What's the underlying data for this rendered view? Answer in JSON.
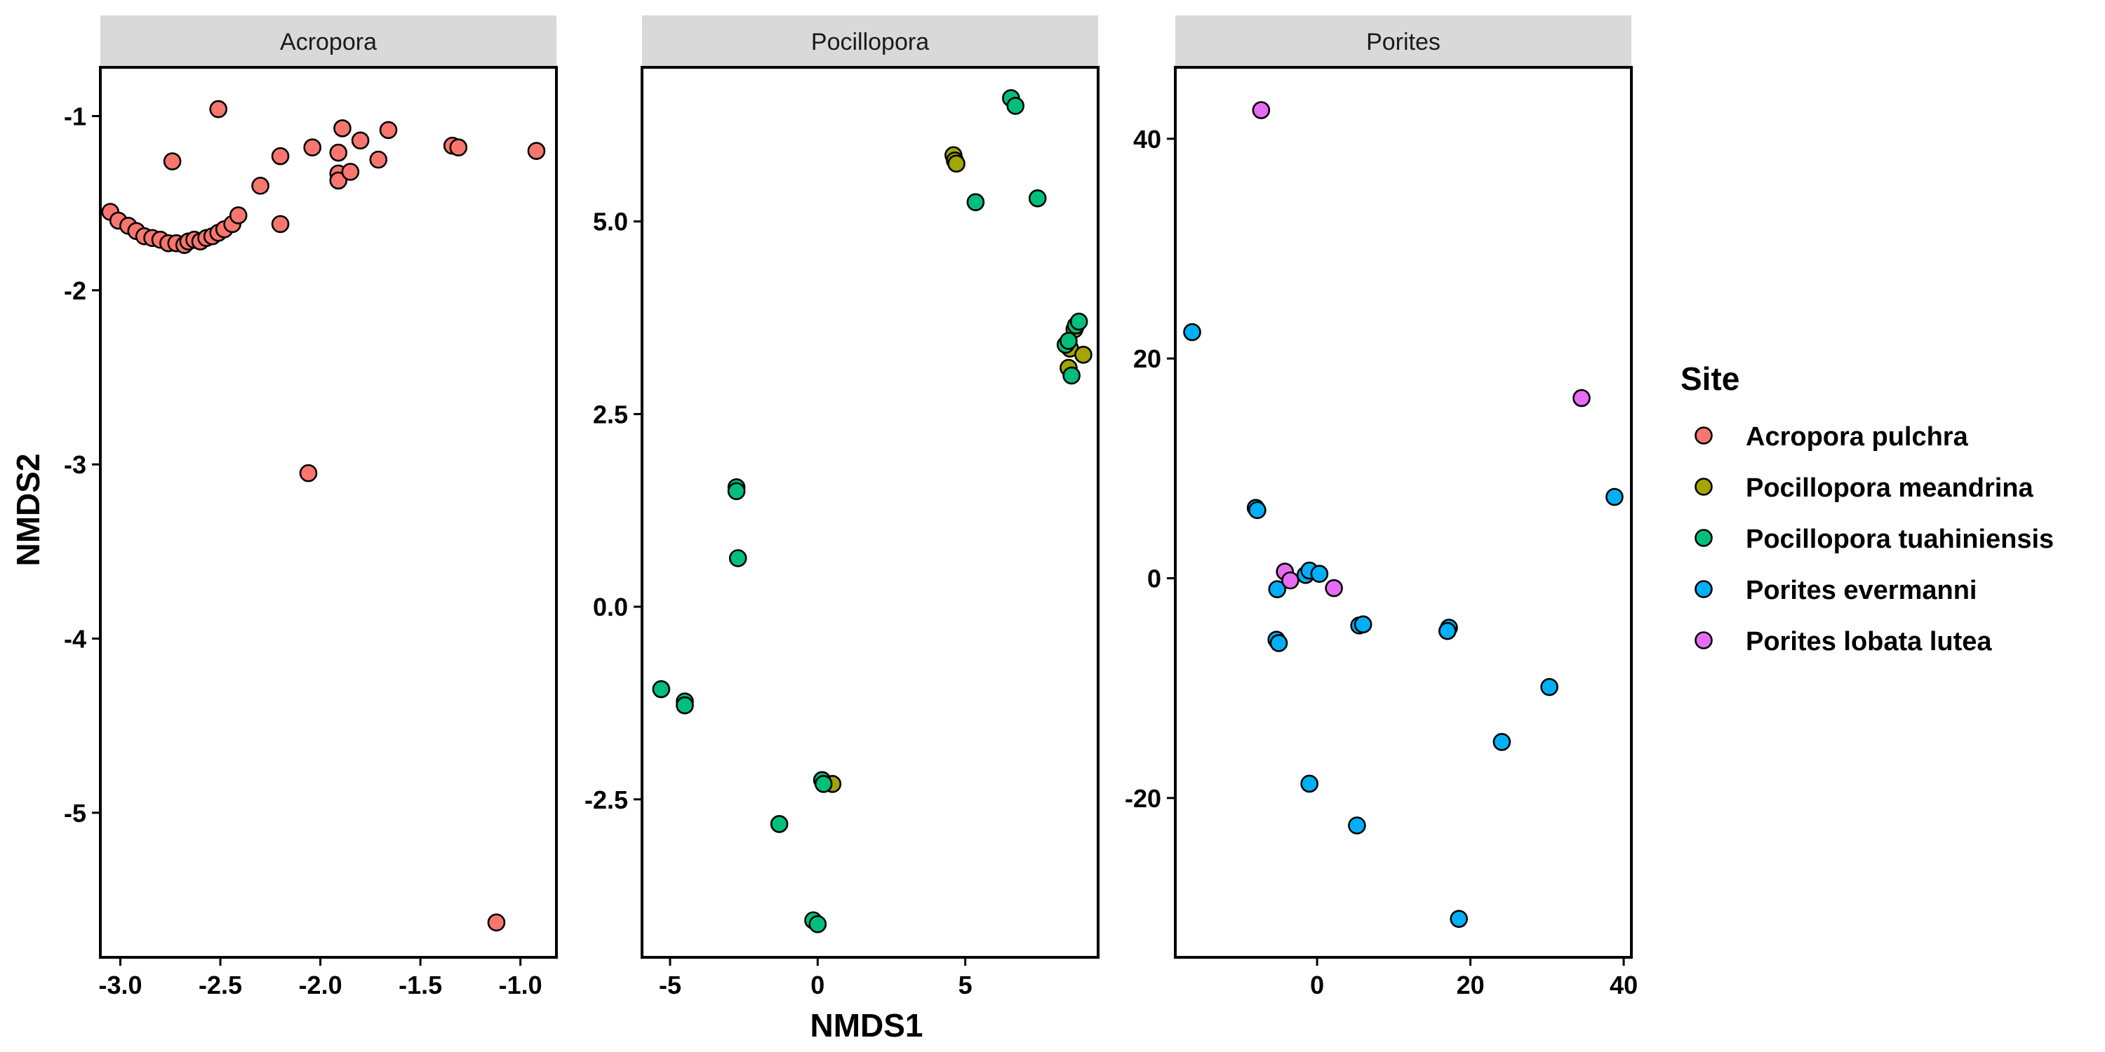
{
  "chart_data": {
    "type": "scatter",
    "xlabel": "NMDS1",
    "ylabel": "NMDS2",
    "legend": {
      "title": "Site",
      "placement": "right",
      "entries": [
        {
          "name": "Acropora pulchra",
          "color": "#F8766D"
        },
        {
          "name": "Pocillopora meandrina",
          "color": "#A3A500"
        },
        {
          "name": "Pocillopora tuahiniensis",
          "color": "#00BF7D"
        },
        {
          "name": "Porites evermanni",
          "color": "#00B0F6"
        },
        {
          "name": "Porites lobata lutea",
          "color": "#E76BF3"
        }
      ]
    },
    "grid": false,
    "panels": [
      {
        "title": "Acropora",
        "xlim": [
          -3.1,
          -0.82
        ],
        "ylim": [
          -5.83,
          -0.72
        ],
        "xticks": [
          -3.0,
          -2.5,
          -2.0,
          -1.5,
          -1.0
        ],
        "xtick_labels": [
          "-3.0",
          "-2.5",
          "-2.0",
          "-1.5",
          "-1.0"
        ],
        "yticks": [
          -5,
          -4,
          -3,
          -2,
          -1
        ],
        "ytick_labels": [
          "-5",
          "-4",
          "-3",
          "-2",
          "-1"
        ],
        "points": [
          {
            "x": -3.05,
            "y": -1.55,
            "s": 0
          },
          {
            "x": -3.01,
            "y": -1.6,
            "s": 0
          },
          {
            "x": -2.96,
            "y": -1.63,
            "s": 0
          },
          {
            "x": -2.92,
            "y": -1.66,
            "s": 0
          },
          {
            "x": -2.88,
            "y": -1.69,
            "s": 0
          },
          {
            "x": -2.84,
            "y": -1.7,
            "s": 0
          },
          {
            "x": -2.8,
            "y": -1.71,
            "s": 0
          },
          {
            "x": -2.76,
            "y": -1.73,
            "s": 0
          },
          {
            "x": -2.72,
            "y": -1.73,
            "s": 0
          },
          {
            "x": -2.68,
            "y": -1.74,
            "s": 0
          },
          {
            "x": -2.66,
            "y": -1.72,
            "s": 0
          },
          {
            "x": -2.63,
            "y": -1.71,
            "s": 0
          },
          {
            "x": -2.6,
            "y": -1.72,
            "s": 0
          },
          {
            "x": -2.57,
            "y": -1.7,
            "s": 0
          },
          {
            "x": -2.54,
            "y": -1.69,
            "s": 0
          },
          {
            "x": -2.51,
            "y": -1.67,
            "s": 0
          },
          {
            "x": -2.48,
            "y": -1.65,
            "s": 0
          },
          {
            "x": -2.44,
            "y": -1.62,
            "s": 0
          },
          {
            "x": -2.41,
            "y": -1.57,
            "s": 0
          },
          {
            "x": -2.74,
            "y": -1.26,
            "s": 0
          },
          {
            "x": -2.51,
            "y": -0.96,
            "s": 0
          },
          {
            "x": -2.3,
            "y": -1.4,
            "s": 0
          },
          {
            "x": -2.2,
            "y": -1.23,
            "s": 0
          },
          {
            "x": -2.2,
            "y": -1.62,
            "s": 0
          },
          {
            "x": -2.04,
            "y": -1.18,
            "s": 0
          },
          {
            "x": -1.91,
            "y": -1.21,
            "s": 0
          },
          {
            "x": -1.89,
            "y": -1.07,
            "s": 0
          },
          {
            "x": -1.91,
            "y": -1.33,
            "s": 0
          },
          {
            "x": -1.91,
            "y": -1.37,
            "s": 0
          },
          {
            "x": -1.85,
            "y": -1.32,
            "s": 0
          },
          {
            "x": -1.8,
            "y": -1.14,
            "s": 0
          },
          {
            "x": -1.71,
            "y": -1.25,
            "s": 0
          },
          {
            "x": -1.66,
            "y": -1.08,
            "s": 0
          },
          {
            "x": -1.34,
            "y": -1.17,
            "s": 0
          },
          {
            "x": -1.31,
            "y": -1.18,
            "s": 0
          },
          {
            "x": -0.92,
            "y": -1.2,
            "s": 0
          },
          {
            "x": -2.06,
            "y": -3.05,
            "s": 0
          },
          {
            "x": -1.12,
            "y": -5.63,
            "s": 0
          }
        ]
      },
      {
        "title": "Pocillopora",
        "xlim": [
          -5.95,
          9.5
        ],
        "ylim": [
          -4.55,
          7.0
        ],
        "xticks": [
          -5,
          0,
          5
        ],
        "xtick_labels": [
          "-5",
          "0",
          "5"
        ],
        "yticks": [
          -2.5,
          0.0,
          2.5,
          5.0
        ],
        "ytick_labels": [
          "-2.5",
          "0.0",
          "2.5",
          "5.0"
        ],
        "points": [
          {
            "x": 4.6,
            "y": 5.86,
            "s": 1
          },
          {
            "x": 4.65,
            "y": 5.79,
            "s": 1
          },
          {
            "x": 4.7,
            "y": 5.75,
            "s": 1
          },
          {
            "x": 8.5,
            "y": 3.1,
            "s": 1
          },
          {
            "x": 8.55,
            "y": 3.35,
            "s": 1
          },
          {
            "x": 8.7,
            "y": 3.6,
            "s": 1
          },
          {
            "x": 9.0,
            "y": 3.27,
            "s": 1
          },
          {
            "x": 0.5,
            "y": -2.3,
            "s": 1
          },
          {
            "x": 6.55,
            "y": 6.6,
            "s": 2
          },
          {
            "x": 6.7,
            "y": 6.5,
            "s": 2
          },
          {
            "x": 5.35,
            "y": 5.25,
            "s": 2
          },
          {
            "x": 7.45,
            "y": 5.3,
            "s": 2
          },
          {
            "x": 8.4,
            "y": 3.4,
            "s": 2
          },
          {
            "x": 8.5,
            "y": 3.45,
            "s": 2
          },
          {
            "x": 8.75,
            "y": 3.65,
            "s": 2
          },
          {
            "x": 8.85,
            "y": 3.7,
            "s": 2
          },
          {
            "x": 8.6,
            "y": 3.0,
            "s": 2
          },
          {
            "x": -2.75,
            "y": 1.55,
            "s": 2
          },
          {
            "x": -2.75,
            "y": 1.5,
            "s": 2
          },
          {
            "x": -2.7,
            "y": 0.63,
            "s": 2
          },
          {
            "x": -5.3,
            "y": -1.07,
            "s": 2
          },
          {
            "x": -4.5,
            "y": -1.23,
            "s": 2
          },
          {
            "x": -4.5,
            "y": -1.28,
            "s": 2
          },
          {
            "x": 0.15,
            "y": -2.25,
            "s": 2
          },
          {
            "x": 0.2,
            "y": -2.3,
            "s": 2
          },
          {
            "x": -1.3,
            "y": -2.82,
            "s": 2
          },
          {
            "x": -0.15,
            "y": -4.07,
            "s": 2
          },
          {
            "x": 0.0,
            "y": -4.12,
            "s": 2
          }
        ]
      },
      {
        "title": "Porites",
        "xlim": [
          -18.5,
          41.0
        ],
        "ylim": [
          -34.5,
          46.5
        ],
        "xticks": [
          0,
          20,
          40
        ],
        "xtick_labels": [
          "0",
          "20",
          "40"
        ],
        "yticks": [
          -20,
          0,
          20,
          40
        ],
        "ytick_labels": [
          "-20",
          "0",
          "20",
          "40"
        ],
        "points": [
          {
            "x": -16.3,
            "y": 22.4,
            "s": 3
          },
          {
            "x": -8.0,
            "y": 6.4,
            "s": 3
          },
          {
            "x": -7.8,
            "y": 6.2,
            "s": 3
          },
          {
            "x": -5.2,
            "y": -1.0,
            "s": 3
          },
          {
            "x": -5.3,
            "y": -5.6,
            "s": 3
          },
          {
            "x": -5.0,
            "y": -5.9,
            "s": 3
          },
          {
            "x": -1.5,
            "y": 0.3,
            "s": 3
          },
          {
            "x": -1.0,
            "y": 0.7,
            "s": 3
          },
          {
            "x": 0.3,
            "y": 0.4,
            "s": 3
          },
          {
            "x": 5.5,
            "y": -4.3,
            "s": 3
          },
          {
            "x": 6.0,
            "y": -4.2,
            "s": 3
          },
          {
            "x": 17.2,
            "y": -4.5,
            "s": 3
          },
          {
            "x": 17.0,
            "y": -4.8,
            "s": 3
          },
          {
            "x": 30.3,
            "y": -9.9,
            "s": 3
          },
          {
            "x": 38.8,
            "y": 7.4,
            "s": 3
          },
          {
            "x": 24.1,
            "y": -14.9,
            "s": 3
          },
          {
            "x": -1.0,
            "y": -18.7,
            "s": 3
          },
          {
            "x": 5.2,
            "y": -22.5,
            "s": 3
          },
          {
            "x": 18.5,
            "y": -31.0,
            "s": 3
          },
          {
            "x": -7.3,
            "y": 42.6,
            "s": 4
          },
          {
            "x": 34.5,
            "y": 16.4,
            "s": 4
          },
          {
            "x": -4.2,
            "y": 0.6,
            "s": 4
          },
          {
            "x": -3.5,
            "y": -0.2,
            "s": 4
          },
          {
            "x": 2.2,
            "y": -0.9,
            "s": 4
          }
        ]
      }
    ]
  }
}
